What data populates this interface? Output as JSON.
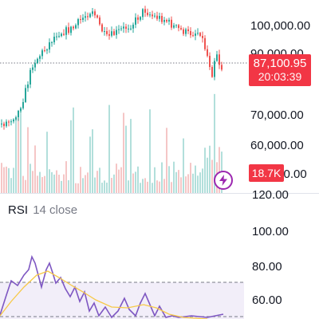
{
  "price_axis": {
    "labels": [
      "100,000.00",
      "90,000.00",
      "70,000.00",
      "60,000.00",
      "50,000.00"
    ]
  },
  "last_price": {
    "value": "87,100.95",
    "countdown": "20:03:39",
    "color": "#f23645"
  },
  "volume": {
    "label": "18.7K",
    "color": "#f23645"
  },
  "rsi": {
    "name": "RSI",
    "args": "14 close",
    "axis_labels": [
      "120.00",
      "100.00",
      "80.00",
      "60.00"
    ],
    "line_color": "#7e57c2",
    "ma_color": "#f7c948",
    "band_color": "#7e57c2"
  },
  "colors": {
    "up": "#26a69a",
    "down": "#ef5350",
    "vol_up": "#b2dfdb",
    "vol_down": "#f5c6c6"
  },
  "icons": {
    "alert": "lightning-bolt-icon"
  }
}
